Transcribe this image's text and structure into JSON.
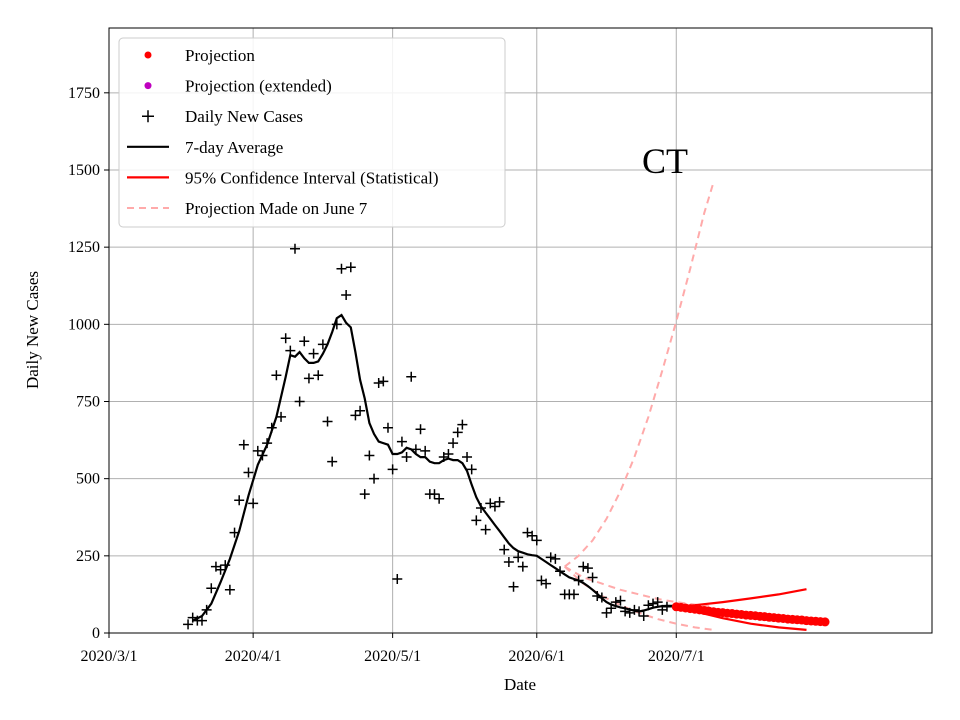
{
  "chart_data": {
    "type": "line",
    "title": "",
    "annotation": "CT",
    "xlabel": "Date",
    "ylabel": "Daily New Cases",
    "xlim": [
      0,
      177
    ],
    "ylim": [
      0,
      1960
    ],
    "grid": true,
    "legend_position": "top-left",
    "x_ticks": [
      {
        "day": 0,
        "label": "2020/3/1"
      },
      {
        "day": 31,
        "label": "2020/4/1"
      },
      {
        "day": 61,
        "label": "2020/5/1"
      },
      {
        "day": 92,
        "label": "2020/6/1"
      },
      {
        "day": 122,
        "label": "2020/7/1"
      }
    ],
    "y_ticks": [
      0,
      250,
      500,
      750,
      1000,
      1250,
      1500,
      1750
    ],
    "legend": [
      {
        "label": "Projection",
        "kind": "dot",
        "color": "#ff0000"
      },
      {
        "label": "Projection (extended)",
        "kind": "dot",
        "color": "#bf00bf"
      },
      {
        "label": "Daily New Cases",
        "kind": "plus",
        "color": "#000000"
      },
      {
        "label": "7-day Average",
        "kind": "line",
        "color": "#000000"
      },
      {
        "label": "95% Confidence Interval (Statistical)",
        "kind": "line",
        "color": "#ff0000"
      },
      {
        "label": "Projection Made on June 7",
        "kind": "dashed",
        "color": "#ffaaaa"
      }
    ],
    "series": {
      "daily_new_cases": {
        "name": "Daily New Cases",
        "color": "#000000",
        "points": [
          [
            17,
            28
          ],
          [
            18,
            50
          ],
          [
            19,
            40
          ],
          [
            20,
            40
          ],
          [
            21,
            75
          ],
          [
            22,
            145
          ],
          [
            23,
            215
          ],
          [
            24,
            205
          ],
          [
            25,
            220
          ],
          [
            26,
            140
          ],
          [
            27,
            325
          ],
          [
            28,
            430
          ],
          [
            29,
            610
          ],
          [
            30,
            520
          ],
          [
            31,
            420
          ],
          [
            32,
            590
          ],
          [
            33,
            575
          ],
          [
            34,
            615
          ],
          [
            35,
            665
          ],
          [
            36,
            835
          ],
          [
            37,
            700
          ],
          [
            38,
            955
          ],
          [
            39,
            915
          ],
          [
            40,
            1245
          ],
          [
            41,
            750
          ],
          [
            42,
            945
          ],
          [
            43,
            825
          ],
          [
            44,
            905
          ],
          [
            45,
            835
          ],
          [
            46,
            935
          ],
          [
            47,
            685
          ],
          [
            48,
            555
          ],
          [
            49,
            1000
          ],
          [
            50,
            1180
          ],
          [
            51,
            1095
          ],
          [
            52,
            1185
          ],
          [
            53,
            705
          ],
          [
            54,
            720
          ],
          [
            55,
            450
          ],
          [
            56,
            575
          ],
          [
            57,
            500
          ],
          [
            58,
            810
          ],
          [
            59,
            815
          ],
          [
            60,
            665
          ],
          [
            61,
            530
          ],
          [
            62,
            175
          ],
          [
            63,
            620
          ],
          [
            64,
            570
          ],
          [
            65,
            830
          ],
          [
            66,
            595
          ],
          [
            67,
            660
          ],
          [
            68,
            590
          ],
          [
            69,
            450
          ],
          [
            70,
            450
          ],
          [
            71,
            435
          ],
          [
            72,
            570
          ],
          [
            73,
            580
          ],
          [
            74,
            615
          ],
          [
            75,
            650
          ],
          [
            76,
            675
          ],
          [
            77,
            570
          ],
          [
            78,
            530
          ],
          [
            79,
            365
          ],
          [
            80,
            405
          ],
          [
            81,
            335
          ],
          [
            82,
            420
          ],
          [
            83,
            410
          ],
          [
            84,
            425
          ],
          [
            85,
            270
          ],
          [
            86,
            230
          ],
          [
            87,
            150
          ],
          [
            88,
            245
          ],
          [
            89,
            215
          ],
          [
            90,
            325
          ],
          [
            91,
            315
          ],
          [
            92,
            300
          ],
          [
            93,
            170
          ],
          [
            94,
            160
          ],
          [
            95,
            245
          ],
          [
            96,
            240
          ],
          [
            97,
            200
          ],
          [
            98,
            125
          ],
          [
            99,
            125
          ],
          [
            100,
            125
          ],
          [
            101,
            170
          ],
          [
            102,
            215
          ],
          [
            103,
            210
          ],
          [
            104,
            180
          ],
          [
            105,
            120
          ],
          [
            106,
            115
          ],
          [
            107,
            65
          ],
          [
            108,
            80
          ],
          [
            109,
            100
          ],
          [
            110,
            105
          ],
          [
            111,
            70
          ],
          [
            112,
            65
          ],
          [
            113,
            75
          ],
          [
            114,
            70
          ],
          [
            115,
            55
          ],
          [
            116,
            90
          ],
          [
            117,
            95
          ],
          [
            118,
            100
          ],
          [
            119,
            75
          ],
          [
            120,
            85
          ]
        ]
      },
      "seven_day_average": {
        "name": "7-day Average",
        "color": "#000000",
        "points": [
          [
            18,
            40
          ],
          [
            20,
            55
          ],
          [
            22,
            95
          ],
          [
            24,
            165
          ],
          [
            26,
            240
          ],
          [
            28,
            330
          ],
          [
            30,
            445
          ],
          [
            32,
            545
          ],
          [
            34,
            610
          ],
          [
            36,
            700
          ],
          [
            38,
            830
          ],
          [
            39,
            900
          ],
          [
            40,
            895
          ],
          [
            41,
            910
          ],
          [
            42,
            890
          ],
          [
            43,
            875
          ],
          [
            44,
            875
          ],
          [
            45,
            880
          ],
          [
            46,
            905
          ],
          [
            47,
            935
          ],
          [
            48,
            975
          ],
          [
            49,
            1020
          ],
          [
            50,
            1030
          ],
          [
            51,
            1005
          ],
          [
            52,
            990
          ],
          [
            53,
            910
          ],
          [
            54,
            820
          ],
          [
            55,
            760
          ],
          [
            56,
            680
          ],
          [
            57,
            645
          ],
          [
            58,
            620
          ],
          [
            60,
            610
          ],
          [
            61,
            580
          ],
          [
            62,
            580
          ],
          [
            63,
            585
          ],
          [
            64,
            600
          ],
          [
            65,
            595
          ],
          [
            66,
            580
          ],
          [
            67,
            570
          ],
          [
            68,
            570
          ],
          [
            69,
            555
          ],
          [
            70,
            550
          ],
          [
            71,
            550
          ],
          [
            72,
            560
          ],
          [
            73,
            565
          ],
          [
            74,
            560
          ],
          [
            75,
            560
          ],
          [
            76,
            550
          ],
          [
            77,
            525
          ],
          [
            78,
            480
          ],
          [
            79,
            440
          ],
          [
            80,
            410
          ],
          [
            81,
            390
          ],
          [
            82,
            370
          ],
          [
            83,
            350
          ],
          [
            84,
            330
          ],
          [
            85,
            310
          ],
          [
            86,
            290
          ],
          [
            87,
            275
          ],
          [
            88,
            265
          ],
          [
            89,
            260
          ],
          [
            90,
            255
          ],
          [
            91,
            252
          ],
          [
            92,
            250
          ],
          [
            93,
            240
          ],
          [
            94,
            230
          ],
          [
            95,
            220
          ],
          [
            96,
            210
          ],
          [
            97,
            200
          ],
          [
            98,
            190
          ],
          [
            99,
            180
          ],
          [
            100,
            175
          ],
          [
            101,
            170
          ],
          [
            102,
            162
          ],
          [
            103,
            152
          ],
          [
            104,
            140
          ],
          [
            105,
            127
          ],
          [
            106,
            112
          ],
          [
            107,
            100
          ],
          [
            108,
            92
          ],
          [
            109,
            87
          ],
          [
            110,
            83
          ],
          [
            111,
            80
          ],
          [
            112,
            76
          ],
          [
            113,
            72
          ],
          [
            114,
            70
          ],
          [
            115,
            73
          ],
          [
            116,
            77
          ],
          [
            117,
            82
          ],
          [
            118,
            85
          ],
          [
            119,
            87
          ],
          [
            120,
            88
          ],
          [
            122,
            88
          ]
        ]
      },
      "projection": {
        "name": "Projection",
        "color": "#ff0000",
        "start_day": 122,
        "values": [
          85,
          83,
          81,
          79,
          77,
          75,
          73,
          71,
          69,
          67,
          66,
          64,
          63,
          61,
          60,
          58,
          57,
          56,
          54,
          53,
          51,
          50,
          48,
          47,
          45,
          44,
          43,
          42,
          40,
          39,
          38,
          37,
          36
        ]
      },
      "confidence_interval": {
        "name": "95% Confidence Interval (Statistical)",
        "color": "#ff0000",
        "upper": [
          [
            122,
            85
          ],
          [
            126,
            90
          ],
          [
            132,
            100
          ],
          [
            138,
            112
          ],
          [
            144,
            125
          ],
          [
            150,
            142
          ]
        ],
        "lower": [
          [
            122,
            85
          ],
          [
            126,
            70
          ],
          [
            132,
            48
          ],
          [
            138,
            30
          ],
          [
            144,
            18
          ],
          [
            150,
            10
          ]
        ]
      },
      "projection_june7": {
        "name": "Projection Made on June 7",
        "color": "#ffaaaa",
        "upper": [
          [
            98,
            215
          ],
          [
            101,
            250
          ],
          [
            104,
            300
          ],
          [
            107,
            370
          ],
          [
            110,
            460
          ],
          [
            113,
            570
          ],
          [
            116,
            700
          ],
          [
            119,
            850
          ],
          [
            122,
            1010
          ],
          [
            125,
            1180
          ],
          [
            128,
            1360
          ],
          [
            130,
            1460
          ]
        ],
        "middle": [
          [
            98,
            215
          ],
          [
            102,
            180
          ],
          [
            106,
            160
          ],
          [
            110,
            140
          ],
          [
            114,
            125
          ],
          [
            118,
            110
          ],
          [
            122,
            100
          ],
          [
            126,
            92
          ],
          [
            130,
            85
          ]
        ],
        "lower": [
          [
            98,
            215
          ],
          [
            102,
            160
          ],
          [
            106,
            120
          ],
          [
            110,
            90
          ],
          [
            114,
            65
          ],
          [
            118,
            45
          ],
          [
            122,
            30
          ],
          [
            126,
            18
          ],
          [
            130,
            10
          ]
        ]
      }
    }
  }
}
